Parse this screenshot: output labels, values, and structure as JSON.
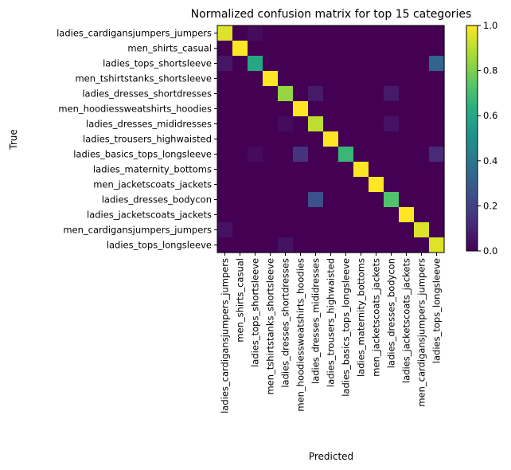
{
  "chart_data": {
    "type": "heatmap",
    "title": "Normalized confusion matrix for top 15 categories",
    "xlabel": "Predicted",
    "ylabel": "True",
    "categories": [
      "ladies_cardigansjumpers_jumpers",
      "men_shirts_casual",
      "ladies_tops_shortsleeve",
      "men_tshirtstanks_shortsleeve",
      "ladies_dresses_shortdresses",
      "men_hoodiessweatshirts_hoodies",
      "ladies_dresses_mididresses",
      "ladies_trousers_highwaisted",
      "ladies_basics_tops_longsleeve",
      "ladies_maternity_bottoms",
      "men_jacketscoats_jackets",
      "ladies_dresses_bodycon",
      "ladies_jacketscoats_jackets",
      "men_cardigansjumpers_jumpers",
      "ladies_tops_longsleeve"
    ],
    "matrix": [
      [
        0.95,
        0,
        0.03,
        0,
        0,
        0,
        0,
        0,
        0,
        0,
        0,
        0,
        0,
        0,
        0
      ],
      [
        0,
        1.0,
        0,
        0,
        0,
        0,
        0,
        0,
        0,
        0,
        0,
        0,
        0,
        0,
        0
      ],
      [
        0.06,
        0,
        0.6,
        0,
        0,
        0,
        0,
        0,
        0,
        0,
        0,
        0,
        0,
        0,
        0.33
      ],
      [
        0,
        0,
        0,
        1.0,
        0,
        0,
        0,
        0,
        0,
        0,
        0,
        0,
        0,
        0,
        0
      ],
      [
        0,
        0,
        0,
        0,
        0.84,
        0,
        0.07,
        0,
        0,
        0,
        0,
        0.07,
        0,
        0,
        0
      ],
      [
        0,
        0,
        0,
        0,
        0,
        1.0,
        0,
        0,
        0,
        0,
        0,
        0,
        0,
        0,
        0
      ],
      [
        0,
        0,
        0,
        0,
        0.03,
        0,
        0.9,
        0,
        0,
        0,
        0,
        0.05,
        0,
        0,
        0
      ],
      [
        0,
        0,
        0,
        0,
        0,
        0,
        0,
        1.0,
        0,
        0,
        0,
        0,
        0,
        0,
        0
      ],
      [
        0,
        0,
        0.03,
        0,
        0,
        0.15,
        0,
        0,
        0.67,
        0,
        0,
        0,
        0,
        0,
        0.12
      ],
      [
        0,
        0,
        0,
        0,
        0,
        0,
        0,
        0,
        0,
        1.0,
        0,
        0,
        0,
        0,
        0
      ],
      [
        0,
        0,
        0,
        0,
        0,
        0,
        0,
        0,
        0,
        0,
        1.0,
        0,
        0,
        0,
        0
      ],
      [
        0,
        0,
        0,
        0,
        0,
        0,
        0.25,
        0,
        0,
        0,
        0,
        0.72,
        0,
        0,
        0
      ],
      [
        0,
        0,
        0,
        0,
        0,
        0,
        0,
        0,
        0,
        0,
        0,
        0,
        1.0,
        0,
        0
      ],
      [
        0.05,
        0,
        0,
        0,
        0,
        0,
        0,
        0,
        0,
        0,
        0,
        0,
        0,
        0.95,
        0
      ],
      [
        0,
        0,
        0,
        0,
        0.05,
        0,
        0,
        0,
        0,
        0,
        0,
        0,
        0,
        0,
        0.95
      ]
    ],
    "colormap": "viridis",
    "colorbar": {
      "range": [
        0.0,
        1.0
      ],
      "ticks": [
        "0.0",
        "0.2",
        "0.4",
        "0.6",
        "0.8",
        "1.0"
      ]
    },
    "grid": false
  }
}
